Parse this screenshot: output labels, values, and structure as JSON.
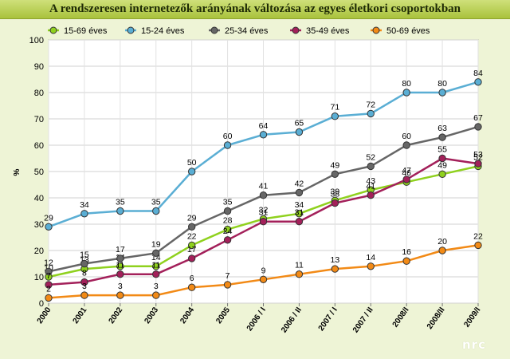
{
  "chart_data": {
    "type": "line",
    "title": "A rendszeresen internetezők arányának változása az egyes életkori csoportokban",
    "ylabel": "%",
    "xlabel": "",
    "ylim": [
      0,
      100
    ],
    "yticks": [
      0,
      10,
      20,
      30,
      40,
      50,
      60,
      70,
      80,
      90,
      100
    ],
    "categories": [
      "2000",
      "2001",
      "2002",
      "2003",
      "2004",
      "2005",
      "2006 / I",
      "2006 / II",
      "2007 / I",
      "2007 / II",
      "2008/I",
      "2008/II",
      "2009/I"
    ],
    "legend_position": "top",
    "series": [
      {
        "name": "15-69 éves",
        "color": "#8fd11e",
        "values": [
          10,
          13,
          14,
          14,
          22,
          28,
          32,
          34,
          39,
          43,
          46,
          49,
          52
        ]
      },
      {
        "name": "15-24 éves",
        "color": "#5aaed4",
        "values": [
          29,
          34,
          35,
          35,
          50,
          60,
          64,
          65,
          71,
          72,
          80,
          80,
          84
        ]
      },
      {
        "name": "25-34 éves",
        "color": "#666666",
        "values": [
          12,
          15,
          17,
          19,
          29,
          35,
          41,
          42,
          49,
          52,
          60,
          63,
          67
        ]
      },
      {
        "name": "35-49 éves",
        "color": "#a3205a",
        "values": [
          7,
          8,
          11,
          11,
          17,
          24,
          31,
          31,
          38,
          41,
          47,
          55,
          53
        ]
      },
      {
        "name": "50-69 éves",
        "color": "#f28a16",
        "values": [
          2,
          3,
          3,
          3,
          6,
          7,
          9,
          11,
          13,
          14,
          16,
          20,
          22
        ]
      }
    ]
  },
  "logo": "nrc"
}
